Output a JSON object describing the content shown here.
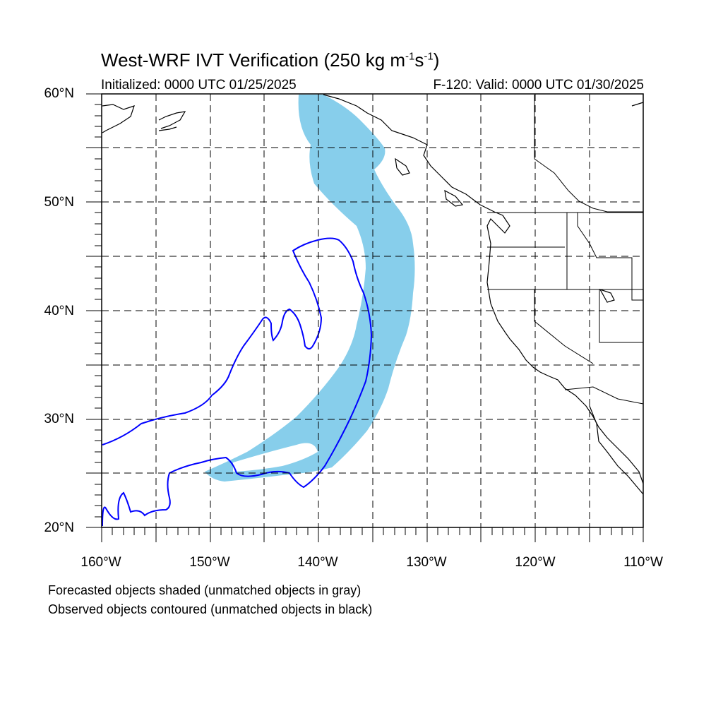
{
  "title": {
    "main": "West-WRF IVT Verification (250 kg m",
    "sup1": "-1",
    "mid": "s",
    "sup2": "-1",
    "end": ")"
  },
  "subtitle": {
    "initialized": "Initialized: 0000 UTC 01/25/2025",
    "valid": "F-120: Valid: 0000 UTC 01/30/2025"
  },
  "axes": {
    "lat_labels": [
      "60°N",
      "50°N",
      "40°N",
      "30°N",
      "20°N"
    ],
    "lon_labels": [
      "160°W",
      "150°W",
      "140°W",
      "130°W",
      "120°W",
      "110°W"
    ],
    "lat_range": [
      20,
      60
    ],
    "lon_range": [
      -160,
      -110
    ]
  },
  "legend": {
    "line1": "Forecasted objects shaded (unmatched objects in gray)",
    "line2": "Observed objects contoured (unmatched objects in black)"
  },
  "colors": {
    "forecast_fill": "#87ceeb",
    "observed_contour": "#0000ff",
    "coastline": "#000000",
    "grid": "#000000"
  }
}
